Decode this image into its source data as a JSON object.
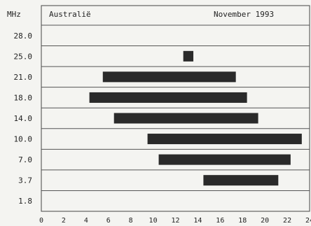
{
  "chart_data": {
    "type": "bar",
    "orientation": "horizontal-range",
    "title_left": "Australië",
    "title_right": "November 1993",
    "y_unit": "MHz",
    "categories": [
      "28.0",
      "25.0",
      "21.0",
      "18.0",
      "14.0",
      "10.0",
      "7.0",
      "3.7",
      "1.8"
    ],
    "ranges": [
      null,
      [
        12.7,
        13.6
      ],
      [
        5.5,
        17.4
      ],
      [
        4.3,
        18.4
      ],
      [
        6.5,
        19.4
      ],
      [
        9.5,
        23.3
      ],
      [
        10.5,
        22.3
      ],
      [
        14.5,
        21.2
      ],
      null
    ],
    "xlim": [
      0,
      24
    ],
    "xticks": [
      "0",
      "2",
      "4",
      "6",
      "8",
      "10",
      "12",
      "14",
      "16",
      "18",
      "20",
      "22",
      "24"
    ],
    "band_color": "#2a2a2a",
    "grid": true
  }
}
